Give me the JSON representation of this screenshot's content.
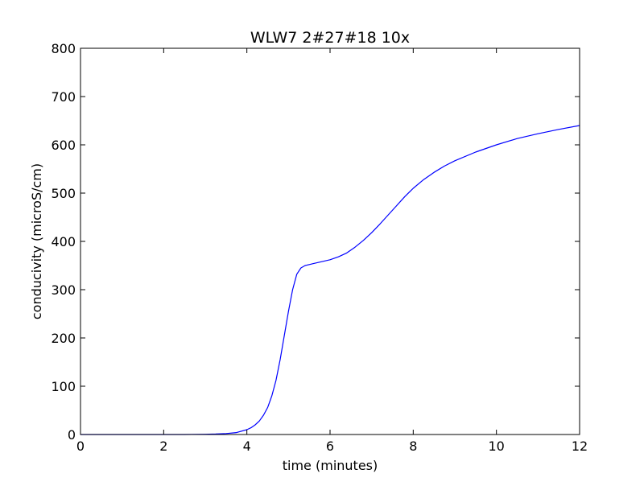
{
  "chart_data": {
    "type": "line",
    "title": "WLW7 2#27#18 10x",
    "xlabel": "time (minutes)",
    "ylabel": "conducivity (microS/cm)",
    "xlim": [
      0,
      12
    ],
    "ylim": [
      0,
      800
    ],
    "xticks": [
      0,
      2,
      4,
      6,
      8,
      10,
      12
    ],
    "yticks": [
      0,
      100,
      200,
      300,
      400,
      500,
      600,
      700,
      800
    ],
    "xtick_labels": [
      "0",
      "2",
      "4",
      "6",
      "8",
      "10",
      "12"
    ],
    "ytick_labels": [
      "0",
      "100",
      "200",
      "300",
      "400",
      "500",
      "600",
      "700",
      "800"
    ],
    "grid": false,
    "legend": "none",
    "series": [
      {
        "color": "#0000ff",
        "x": [
          0,
          0.5,
          1,
          1.5,
          2,
          2.5,
          3,
          3.25,
          3.5,
          3.75,
          4.0,
          4.1,
          4.2,
          4.3,
          4.4,
          4.5,
          4.6,
          4.7,
          4.8,
          4.9,
          5.0,
          5.1,
          5.2,
          5.3,
          5.4,
          5.5,
          5.6,
          5.8,
          6.0,
          6.2,
          6.4,
          6.6,
          6.8,
          7.0,
          7.2,
          7.4,
          7.6,
          7.8,
          8.0,
          8.25,
          8.5,
          8.75,
          9.0,
          9.5,
          10.0,
          10.5,
          11.0,
          11.5,
          12.0
        ],
        "y": [
          0,
          0,
          0,
          0,
          0,
          0,
          0.5,
          1,
          2,
          4,
          10,
          14,
          20,
          28,
          40,
          56,
          80,
          112,
          155,
          205,
          255,
          300,
          332,
          345,
          350,
          352,
          354,
          358,
          362,
          368,
          376,
          388,
          402,
          418,
          436,
          455,
          474,
          493,
          510,
          528,
          543,
          556,
          567,
          585,
          600,
          613,
          623,
          632,
          640
        ]
      }
    ]
  }
}
